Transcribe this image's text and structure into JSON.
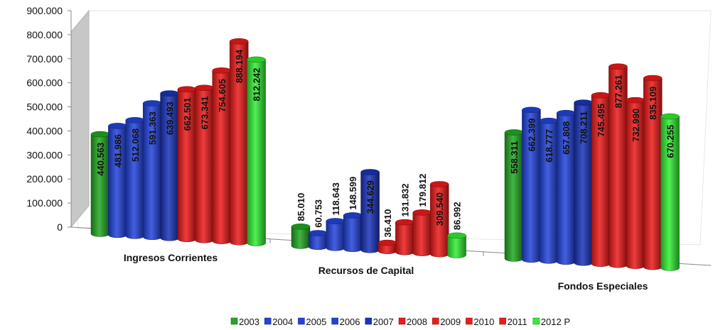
{
  "chart_data": {
    "type": "bar",
    "categories": [
      "Ingresos Corrientes",
      "Recursos de Capital",
      "Fondos Especiales"
    ],
    "yticks": [
      "0",
      "100.000",
      "200.000",
      "300.000",
      "400.000",
      "500.000",
      "600.000",
      "700.000",
      "800.000",
      "900.000"
    ],
    "ylim": [
      0,
      900000
    ],
    "series": [
      {
        "name": "2003",
        "color": "#22a822",
        "values": [
          440563,
          85010,
          558311
        ],
        "labels": [
          "440.563",
          "85.010",
          "558.311"
        ]
      },
      {
        "name": "2004",
        "color": "#2244dd",
        "values": [
          481986,
          60753,
          662399
        ],
        "labels": [
          "481.986",
          "60.753",
          "662.399"
        ]
      },
      {
        "name": "2005",
        "color": "#2244dd",
        "values": [
          512068,
          118643,
          618777
        ],
        "labels": [
          "512.068",
          "118.643",
          "618.777"
        ]
      },
      {
        "name": "2006",
        "color": "#2244dd",
        "values": [
          591363,
          148599,
          657808
        ],
        "labels": [
          "591.363",
          "148.599",
          "657.808"
        ]
      },
      {
        "name": "2007",
        "color": "#1a33bb",
        "values": [
          639493,
          344629,
          708211
        ],
        "labels": [
          "639.493",
          "344.629",
          "708.211"
        ]
      },
      {
        "name": "2008",
        "color": "#ee1a1a",
        "values": [
          662501,
          36410,
          745495
        ],
        "labels": [
          "662.501",
          "36.410",
          "745.495"
        ]
      },
      {
        "name": "2009",
        "color": "#ee1a1a",
        "values": [
          673341,
          131832,
          877261
        ],
        "labels": [
          "673.341",
          "131.832",
          "877.261"
        ]
      },
      {
        "name": "2010",
        "color": "#ee1a1a",
        "values": [
          754605,
          179812,
          732990
        ],
        "labels": [
          "754.605",
          "179.812",
          "732.990"
        ]
      },
      {
        "name": "2011",
        "color": "#ee1a1a",
        "values": [
          888194,
          309540,
          835109
        ],
        "labels": [
          "888.194",
          "309.540",
          "835.109"
        ]
      },
      {
        "name": "2012 P",
        "color": "#33ee33",
        "values": [
          812242,
          86992,
          670255
        ],
        "labels": [
          "812.242",
          "86.992",
          "670.255"
        ]
      }
    ]
  }
}
